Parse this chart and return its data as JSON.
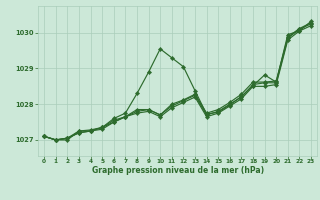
{
  "title": "Graphe pression niveau de la mer (hPa)",
  "bg_color": "#cce8d8",
  "grid_color": "#aaceba",
  "line_color": "#2d6b2d",
  "marker_color": "#2d6b2d",
  "xlim": [
    -0.5,
    23.5
  ],
  "ylim": [
    1026.55,
    1030.75
  ],
  "yticks": [
    1027,
    1028,
    1029,
    1030
  ],
  "xticks": [
    0,
    1,
    2,
    3,
    4,
    5,
    6,
    7,
    8,
    9,
    10,
    11,
    12,
    13,
    14,
    15,
    16,
    17,
    18,
    19,
    20,
    21,
    22,
    23
  ],
  "series": [
    [
      1027.1,
      1027.0,
      1027.05,
      1027.25,
      1027.25,
      1027.3,
      1027.5,
      1027.65,
      1027.75,
      1027.8,
      1027.65,
      1027.9,
      1028.05,
      1028.2,
      1027.65,
      1027.75,
      1027.95,
      1028.15,
      1028.5,
      1028.5,
      1028.55,
      1029.8,
      1030.05,
      1030.2
    ],
    [
      1027.1,
      1027.0,
      1027.05,
      1027.2,
      1027.25,
      1027.35,
      1027.5,
      1027.65,
      1027.8,
      1027.85,
      1027.7,
      1027.95,
      1028.1,
      1028.25,
      1027.7,
      1027.8,
      1028.0,
      1028.2,
      1028.55,
      1028.6,
      1028.6,
      1029.85,
      1030.1,
      1030.25
    ],
    [
      1027.1,
      1027.0,
      1027.05,
      1027.2,
      1027.25,
      1027.35,
      1027.55,
      1027.65,
      1027.85,
      1027.85,
      1027.7,
      1028.0,
      1028.12,
      1028.28,
      1027.75,
      1027.85,
      1028.05,
      1028.28,
      1028.62,
      1028.62,
      1028.65,
      1029.88,
      1030.12,
      1030.28
    ],
    [
      1027.1,
      1027.0,
      1027.0,
      1027.25,
      1027.28,
      1027.35,
      1027.6,
      1027.75,
      1028.3,
      1028.9,
      1029.55,
      1029.3,
      1029.05,
      1028.38,
      1027.72,
      1027.78,
      1027.98,
      1028.22,
      1028.52,
      1028.82,
      1028.62,
      1029.95,
      1030.05,
      1030.32
    ]
  ]
}
